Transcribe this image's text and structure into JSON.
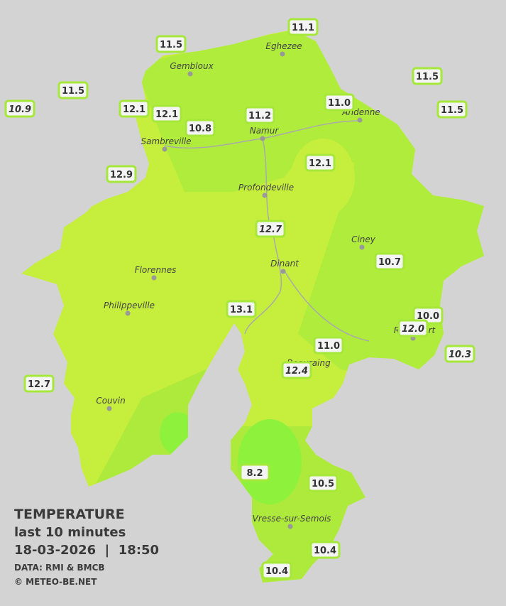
{
  "legend": {
    "title": "TEMPERATURE",
    "period": "last 10 minutes",
    "timestamp": "18-03-2026  |  18:50",
    "source": "DATA: RMI & BMCB",
    "copyright": "© METEO-BE.NET"
  },
  "cities": [
    "Gembloux",
    "Eghezee",
    "Andenne",
    "Namur",
    "Sambreville",
    "Profondeville",
    "Ciney",
    "Dinant",
    "Florennes",
    "Philippeville",
    "Rochefort",
    "Beauraing",
    "Couvin",
    "Vresse-sur-Semois"
  ],
  "stations": [
    {
      "label": "11.1",
      "italic": false
    },
    {
      "label": "11.5",
      "italic": false
    },
    {
      "label": "11.5",
      "italic": false
    },
    {
      "label": "11.5",
      "italic": false
    },
    {
      "label": "10.9",
      "italic": true
    },
    {
      "label": "12.1",
      "italic": false
    },
    {
      "label": "12.1",
      "italic": false
    },
    {
      "label": "11.0",
      "italic": false
    },
    {
      "label": "11.5",
      "italic": false
    },
    {
      "label": "11.2",
      "italic": false
    },
    {
      "label": "10.8",
      "italic": false
    },
    {
      "label": "12.9",
      "italic": false
    },
    {
      "label": "12.1",
      "italic": false
    },
    {
      "label": "12.7",
      "italic": true
    },
    {
      "label": "10.7",
      "italic": false
    },
    {
      "label": "13.1",
      "italic": false
    },
    {
      "label": "10.0",
      "italic": false
    },
    {
      "label": "12.0",
      "italic": true
    },
    {
      "label": "11.0",
      "italic": false
    },
    {
      "label": "10.3",
      "italic": true
    },
    {
      "label": "12.4",
      "italic": true
    },
    {
      "label": "12.7",
      "italic": false
    },
    {
      "label": "8.2",
      "italic": false
    },
    {
      "label": "10.5",
      "italic": false
    },
    {
      "label": "10.4",
      "italic": false
    },
    {
      "label": "10.4",
      "italic": false
    }
  ]
}
